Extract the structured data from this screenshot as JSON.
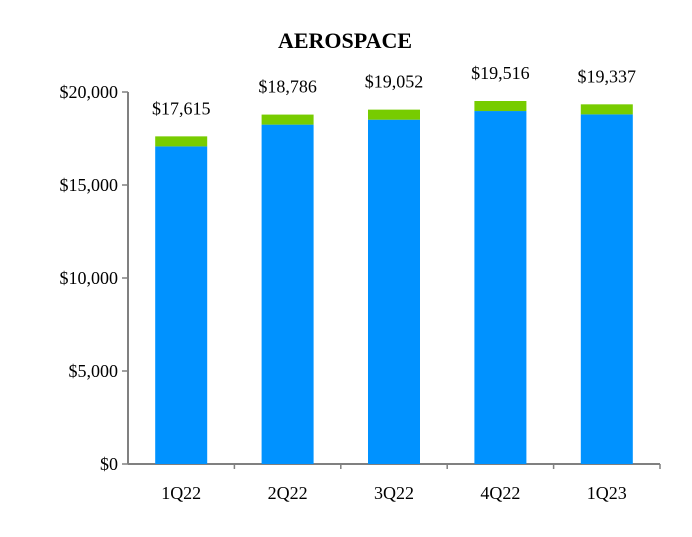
{
  "chart_data": {
    "type": "bar",
    "stacked": true,
    "title": "AEROSPACE",
    "categories": [
      "1Q22",
      "2Q22",
      "3Q22",
      "4Q22",
      "1Q23"
    ],
    "totals": [
      17615,
      18786,
      19052,
      19516,
      19337
    ],
    "total_labels": [
      "$17,615",
      "$18,786",
      "$19,052",
      "$19,516",
      "$19,337"
    ],
    "series": [
      {
        "color": "#0092FF",
        "values": [
          17075,
          18246,
          18512,
          18976,
          18797
        ]
      },
      {
        "color": "#77CC00",
        "values": [
          540,
          540,
          540,
          540,
          540
        ]
      }
    ],
    "yticks": [
      0,
      5000,
      10000,
      15000,
      20000
    ],
    "ytick_labels": [
      "$0",
      "$5,000",
      "$10,000",
      "$15,000",
      "$20,000"
    ],
    "ylim": [
      0,
      20000
    ],
    "grid": false,
    "legend": "none"
  }
}
